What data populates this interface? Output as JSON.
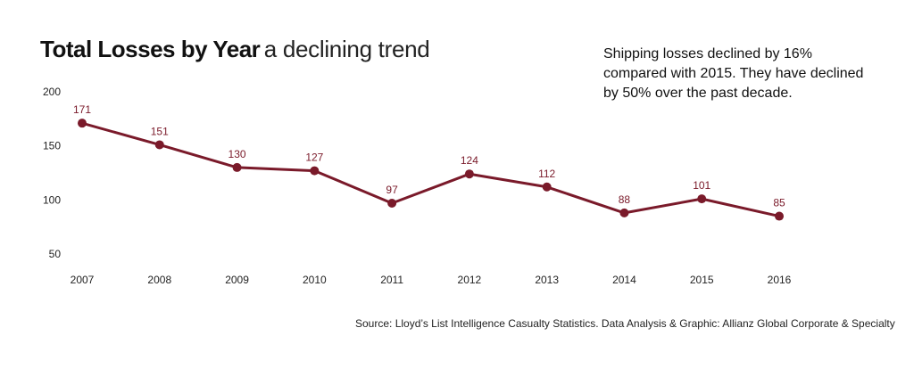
{
  "header": {
    "title_bold": "Total Losses by Year",
    "title_light": "a declining trend"
  },
  "note": "Shipping losses declined by 16% compared with 2015. They have declined by 50% over the past decade.",
  "source": "Source: Lloyd’s List Intelligence Casualty Statistics.  Data Analysis & Graphic: Allianz Global Corporate & Specialty",
  "colors": {
    "line": "#7a1a2a",
    "text": "#111111"
  },
  "chart_data": {
    "type": "line",
    "title": "Total Losses by Year",
    "subtitle": "a declining trend",
    "x": [
      "2007",
      "2008",
      "2009",
      "2010",
      "2011",
      "2012",
      "2013",
      "2014",
      "2015",
      "2016"
    ],
    "series": [
      {
        "values": [
          171,
          151,
          130,
          127,
          97,
          124,
          112,
          88,
          101,
          85
        ]
      }
    ],
    "data_labels": [
      "171",
      "151",
      "130",
      "127",
      "97",
      "124",
      "112",
      "88",
      "101",
      "85"
    ],
    "yticks": [
      200,
      150,
      100,
      50
    ],
    "ylim": [
      50,
      200
    ],
    "grid": false,
    "xlabel": "",
    "ylabel": ""
  }
}
